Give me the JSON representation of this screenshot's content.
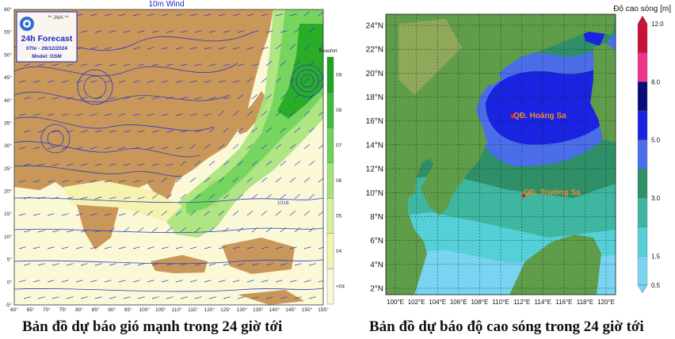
{
  "left_map": {
    "title": "10m Wind",
    "badge": {
      "agency": "** JMA **",
      "product": "24h Forecast",
      "valid": "07hr - 28/12/2024",
      "model": "Model: GSM"
    },
    "lat_ticks": [
      "60°",
      "55°",
      "50°",
      "45°",
      "40°",
      "35°",
      "30°",
      "25°",
      "20°",
      "15°",
      "10°",
      "5°",
      "0°",
      "-5°"
    ],
    "lon_ticks": [
      "60°",
      "65°",
      "70°",
      "75°",
      "80°",
      "85°",
      "90°",
      "95°",
      "100°",
      "105°",
      "110°",
      "115°",
      "120°",
      "125°",
      "130°",
      "135°",
      "140°",
      "145°",
      "150°",
      "155°"
    ],
    "scale_title": "Beaufort",
    "scale_labels": [
      "09",
      "08",
      "07",
      "06",
      "05",
      "04",
      "<04"
    ],
    "scale_colors": [
      "#1fa51f",
      "#3dbb3d",
      "#6fd35a",
      "#a6e27a",
      "#d7f0a0",
      "#f6f2b0",
      "#fbf8d6"
    ],
    "pressure_label": "1018"
  },
  "right_map": {
    "legend_title": "Độ cao sóng [m]",
    "legend_labels": [
      "12.0",
      "8.0",
      "5.0",
      "3.0",
      "1.5",
      "0.5"
    ],
    "legend_colors": [
      "#c8123a",
      "#f0368c",
      "#0a0a78",
      "#1a24e0",
      "#4a6ee8",
      "#2e8f68",
      "#3fb6a0",
      "#54d0d6",
      "#79d4f2"
    ],
    "lat_ticks": [
      "24°N",
      "22°N",
      "20°N",
      "18°N",
      "16°N",
      "14°N",
      "12°N",
      "10°N",
      "8°N",
      "6°N",
      "4°N",
      "2°N"
    ],
    "lon_ticks": [
      "100°E",
      "102°E",
      "104°E",
      "106°E",
      "108°E",
      "110°E",
      "112°E",
      "114°E",
      "116°E",
      "118°E",
      "120°E"
    ],
    "places": [
      {
        "name": "QĐ. Hoàng Sa"
      },
      {
        "name": "QĐ. Trường Sa"
      }
    ]
  },
  "captions": {
    "left": "Bản đồ dự báo gió mạnh trong 24 giờ tới",
    "right": "Bản đồ dự báo độ cao sóng trong 24 giờ tới"
  }
}
